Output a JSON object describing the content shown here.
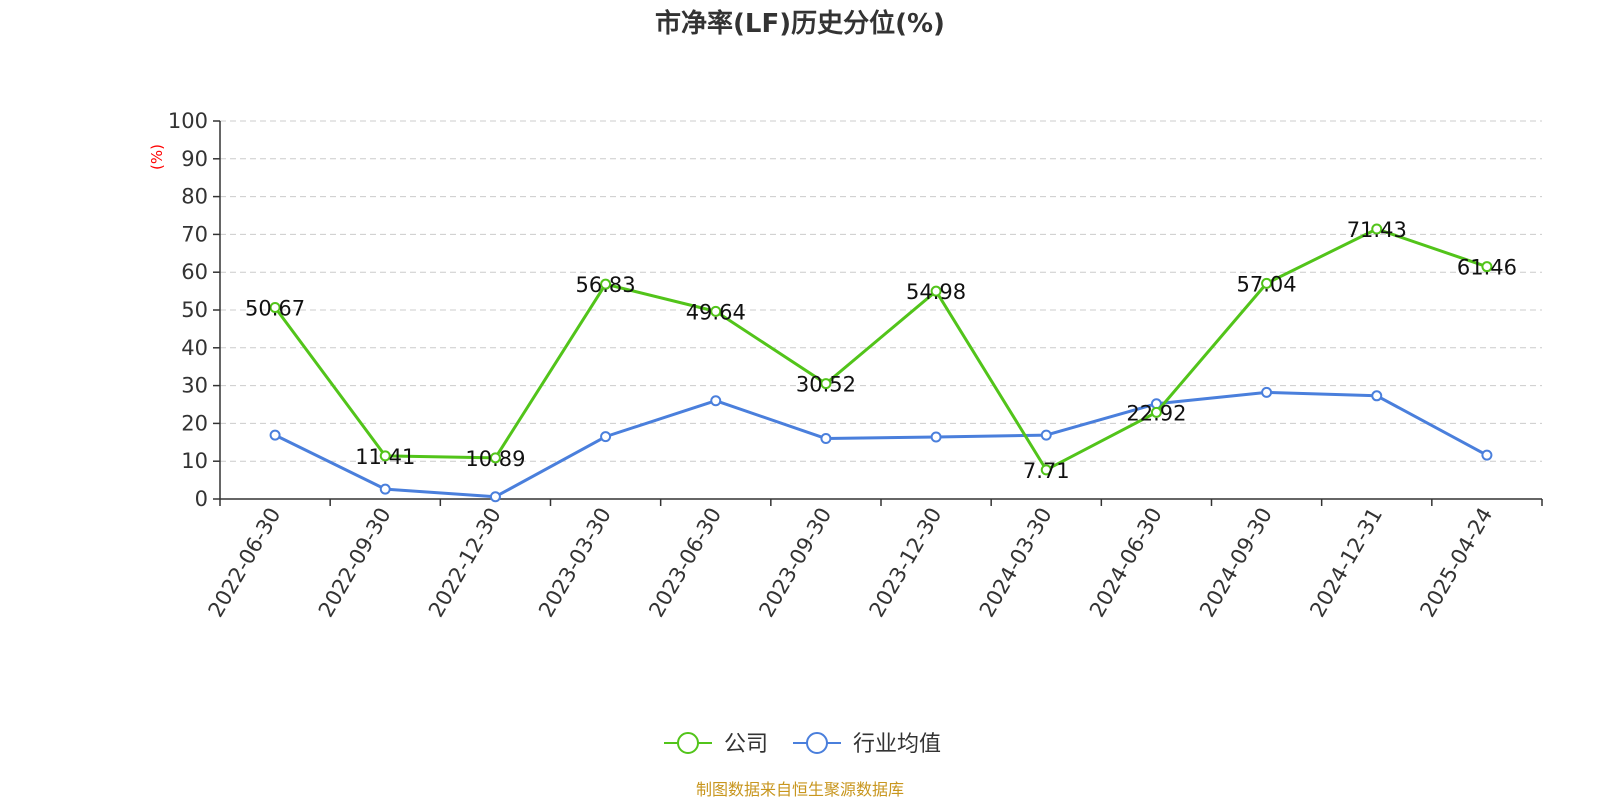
{
  "chart_data": {
    "type": "line",
    "title": "市净率(LF)历史分位(%)",
    "ylabel": "(%)",
    "xlabel": "",
    "ylim": [
      0,
      100
    ],
    "yticks": [
      0,
      10,
      20,
      30,
      40,
      50,
      60,
      70,
      80,
      90,
      100
    ],
    "grid": true,
    "legend_position": "bottom-center",
    "categories": [
      "2022-06-30",
      "2022-09-30",
      "2022-12-30",
      "2023-03-30",
      "2023-06-30",
      "2023-09-30",
      "2023-12-30",
      "2024-03-30",
      "2024-06-30",
      "2024-09-30",
      "2024-12-31",
      "2025-04-24"
    ],
    "series": [
      {
        "name": "公司",
        "color": "#52c41a",
        "values": [
          50.67,
          11.41,
          10.89,
          56.83,
          49.64,
          30.52,
          54.98,
          7.71,
          22.92,
          57.04,
          71.43,
          61.46
        ],
        "labels": [
          "50.67",
          "11.41",
          "10.89",
          "56.83",
          "49.64",
          "30.52",
          "54.98",
          "7.71",
          "22.92",
          "57.04",
          "71.43",
          "61.46"
        ]
      },
      {
        "name": "行业均值",
        "color": "#4a7fdc",
        "values": [
          16.9,
          2.6,
          0.6,
          16.5,
          26.0,
          16.0,
          16.4,
          16.9,
          25.2,
          28.2,
          27.3,
          11.6
        ]
      }
    ],
    "source": "制图数据来自恒生聚源数据库",
    "colors": {
      "ylabel": "#ff0000",
      "source": "#c8961e",
      "grid": "#cccccc",
      "axis": "#333333"
    }
  }
}
